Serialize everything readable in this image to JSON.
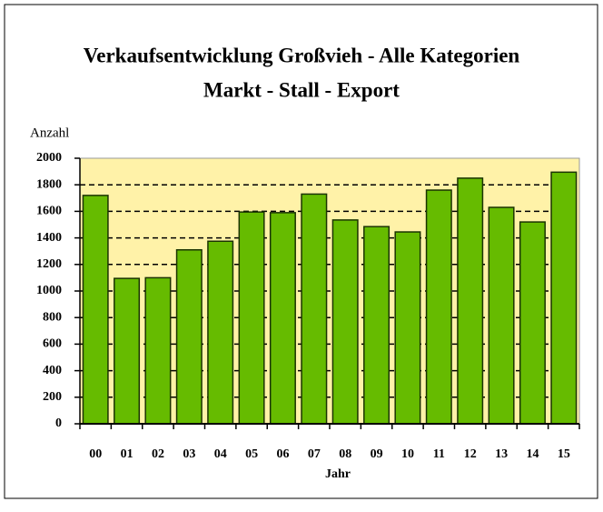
{
  "chart_data": {
    "type": "bar",
    "title": "Verkaufsentwicklung Großvieh - Alle Kategorien",
    "subtitle": "Markt - Stall - Export",
    "y_label": "Anzahl",
    "x_label": "Jahr",
    "categories": [
      "00",
      "01",
      "02",
      "03",
      "04",
      "05",
      "06",
      "07",
      "08",
      "09",
      "10",
      "11",
      "12",
      "13",
      "14",
      "15"
    ],
    "values": [
      1720,
      1095,
      1100,
      1310,
      1375,
      1595,
      1590,
      1730,
      1535,
      1485,
      1445,
      1760,
      1850,
      1630,
      1520,
      1895
    ],
    "color": "#66bb00",
    "ylim": [
      0,
      2000
    ],
    "yticks": [
      0,
      200,
      400,
      600,
      800,
      1000,
      1200,
      1400,
      1600,
      1800,
      2000
    ],
    "grid": true
  }
}
